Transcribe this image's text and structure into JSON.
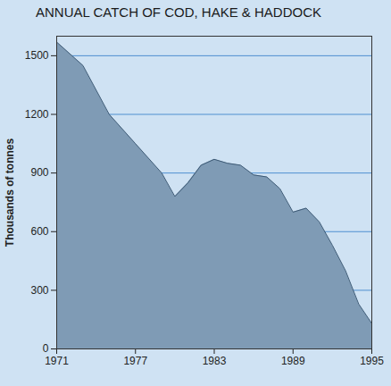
{
  "chart_data": {
    "type": "area",
    "title": "ANNUAL CATCH OF COD, HAKE & HADDOCK",
    "y_label": "Thousands of tonnes",
    "x": [
      1971,
      1973,
      1975,
      1977,
      1979,
      1980,
      1981,
      1982,
      1983,
      1984,
      1985,
      1986,
      1987,
      1988,
      1989,
      1990,
      1991,
      1992,
      1993,
      1994,
      1995
    ],
    "values": [
      1570,
      1450,
      1200,
      1050,
      900,
      780,
      850,
      940,
      970,
      950,
      940,
      890,
      880,
      820,
      700,
      720,
      650,
      530,
      400,
      230,
      130
    ],
    "color": "#7f9bb5",
    "xlim": [
      1971,
      1995
    ],
    "xticks": [
      1971,
      1977,
      1983,
      1989,
      1995
    ],
    "ylim": [
      0,
      1600
    ],
    "yticks": [
      0,
      300,
      600,
      900,
      1200,
      1500
    ],
    "grid": true
  }
}
